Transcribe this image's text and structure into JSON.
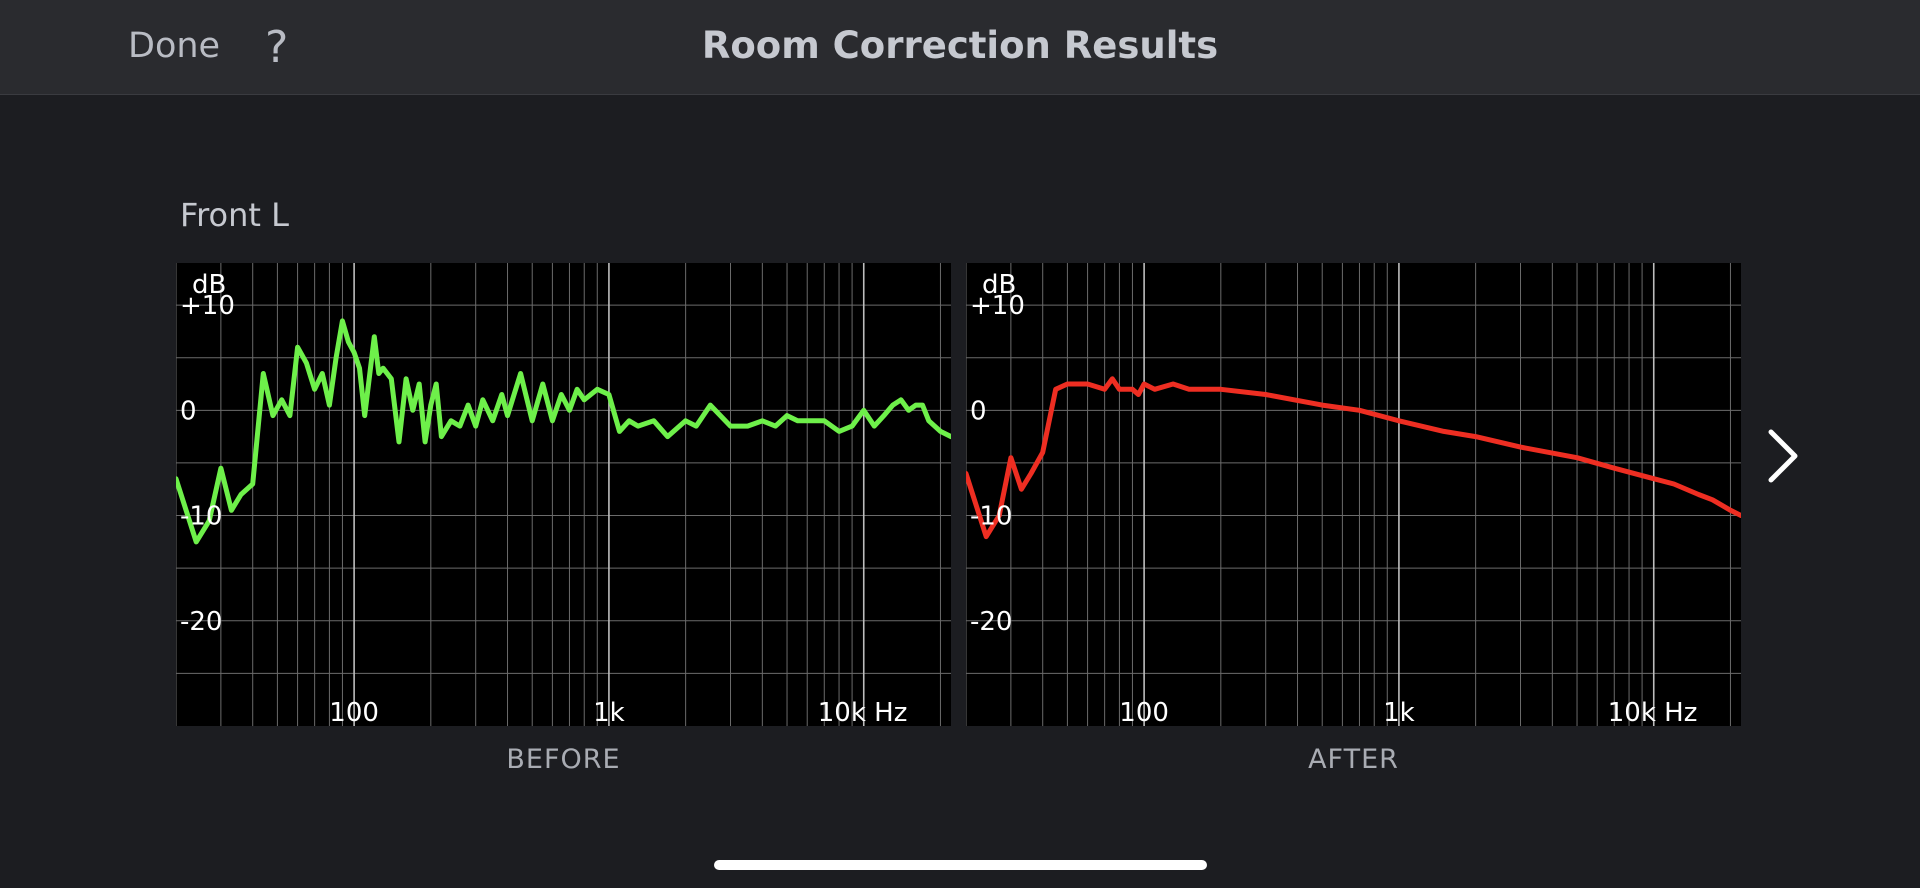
{
  "header": {
    "done_label": "Done",
    "help_label": "?",
    "title": "Room Correction Results"
  },
  "speaker": {
    "name": "Front L"
  },
  "nav": {
    "next_icon": "chevron-right-icon"
  },
  "colors": {
    "before_curve": "#6ef04a",
    "after_curve": "#ee2e22",
    "grid": "#6b6b6b",
    "background": "#1c1d21"
  },
  "chart_data": [
    {
      "type": "line",
      "caption": "BEFORE",
      "xscale": "log",
      "xlim": [
        20,
        22000
      ],
      "ylim": [
        -30,
        14
      ],
      "ylabel": "dB",
      "ytick_labels": [
        {
          "value": 10,
          "label": "+10"
        },
        {
          "value": 0,
          "label": "0"
        },
        {
          "value": -10,
          "label": "-10"
        },
        {
          "value": -20,
          "label": "-20"
        }
      ],
      "xtick_labels": [
        {
          "value": 100,
          "label": "100"
        },
        {
          "value": 1000,
          "label": "1k"
        },
        {
          "value": 10000,
          "label": "10k Hz"
        }
      ],
      "grid": true,
      "series": [
        {
          "color": "#6ef04a",
          "x": [
            20,
            24,
            27,
            30,
            33,
            36,
            40,
            44,
            48,
            52,
            56,
            60,
            65,
            70,
            75,
            80,
            85,
            90,
            95,
            100,
            105,
            110,
            120,
            125,
            130,
            140,
            150,
            160,
            170,
            180,
            190,
            200,
            210,
            220,
            240,
            260,
            280,
            300,
            320,
            350,
            380,
            400,
            450,
            500,
            550,
            600,
            650,
            700,
            750,
            800,
            900,
            1000,
            1100,
            1200,
            1300,
            1500,
            1700,
            2000,
            2200,
            2500,
            3000,
            3500,
            4000,
            4500,
            5000,
            5500,
            6000,
            7000,
            8000,
            9000,
            10000,
            11000,
            12000,
            13000,
            14000,
            15000,
            16000,
            17000,
            18000,
            20000,
            22000
          ],
          "y": [
            -6.5,
            -12.5,
            -10.5,
            -5.5,
            -9.5,
            -8,
            -7,
            3.5,
            -0.5,
            1,
            -0.5,
            6,
            4.5,
            2,
            3.5,
            0.5,
            5,
            8.5,
            6.5,
            5.5,
            4,
            -0.5,
            7,
            3.5,
            4,
            3,
            -3,
            3,
            0,
            2.5,
            -3,
            0.5,
            2.5,
            -2.5,
            -1,
            -1.5,
            0.5,
            -1.5,
            1,
            -1,
            1.5,
            -0.5,
            3.5,
            -1,
            2.5,
            -1,
            1.5,
            0,
            2,
            1,
            2,
            1.5,
            -2,
            -1,
            -1.5,
            -1,
            -2.5,
            -1,
            -1.5,
            0.5,
            -1.5,
            -1.5,
            -1,
            -1.5,
            -0.5,
            -1,
            -1,
            -1,
            -2,
            -1.5,
            0,
            -1.5,
            -0.5,
            0.5,
            1,
            0,
            0.5,
            0.5,
            -1,
            -2,
            -2.5
          ]
        }
      ]
    },
    {
      "type": "line",
      "caption": "AFTER",
      "xscale": "log",
      "xlim": [
        20,
        22000
      ],
      "ylim": [
        -30,
        14
      ],
      "ylabel": "dB",
      "ytick_labels": [
        {
          "value": 10,
          "label": "+10"
        },
        {
          "value": 0,
          "label": "0"
        },
        {
          "value": -10,
          "label": "-10"
        },
        {
          "value": -20,
          "label": "-20"
        }
      ],
      "xtick_labels": [
        {
          "value": 100,
          "label": "100"
        },
        {
          "value": 1000,
          "label": "1k"
        },
        {
          "value": 10000,
          "label": "10k Hz"
        }
      ],
      "grid": true,
      "series": [
        {
          "color": "#ee2e22",
          "x": [
            20,
            24,
            27,
            30,
            33,
            36,
            40,
            45,
            50,
            60,
            70,
            75,
            80,
            90,
            95,
            100,
            110,
            130,
            150,
            200,
            300,
            500,
            700,
            1000,
            1500,
            2000,
            3000,
            5000,
            7000,
            10000,
            12000,
            15000,
            17000,
            20000,
            22000
          ],
          "y": [
            -6,
            -12,
            -10,
            -4.5,
            -7.5,
            -6,
            -4,
            2,
            2.5,
            2.5,
            2,
            3,
            2,
            2,
            1.5,
            2.5,
            2,
            2.5,
            2,
            2,
            1.5,
            0.5,
            0,
            -1,
            -2,
            -2.5,
            -3.5,
            -4.5,
            -5.5,
            -6.5,
            -7,
            -8,
            -8.5,
            -9.5,
            -10
          ]
        }
      ]
    }
  ],
  "captions": {
    "before": "BEFORE",
    "after": "AFTER"
  }
}
